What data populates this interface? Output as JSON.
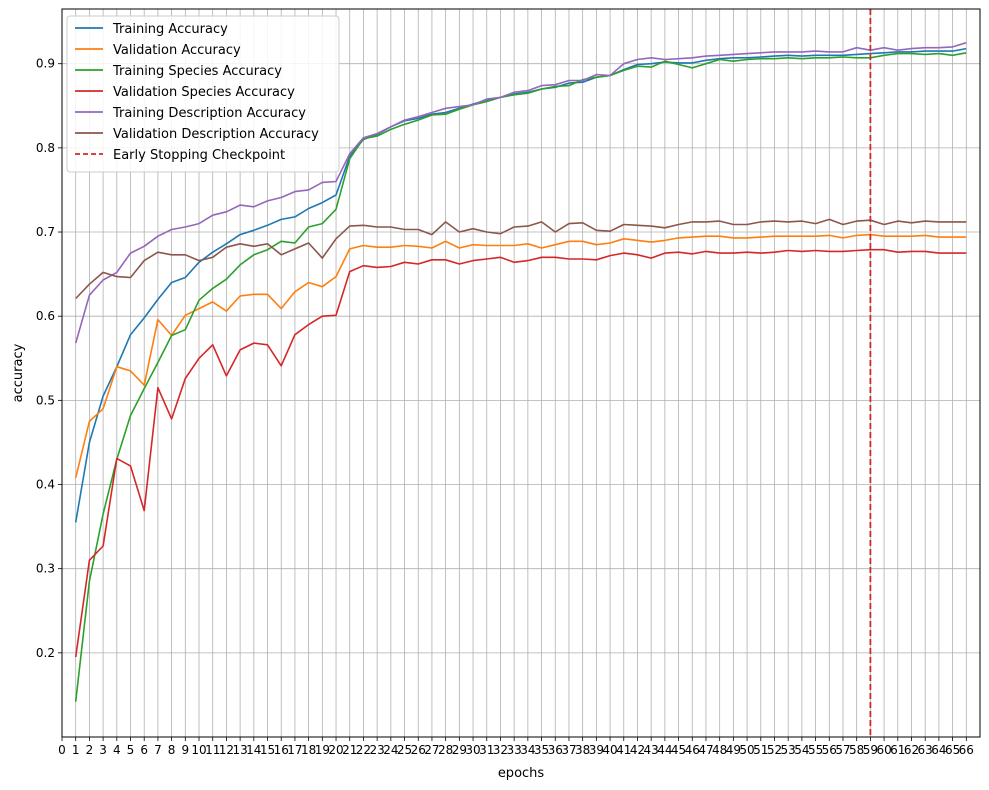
{
  "chart_data": {
    "type": "line",
    "title": "",
    "xlabel": "epochs",
    "ylabel": "accuracy",
    "xlim": [
      0,
      67
    ],
    "ylim": [
      0.1,
      0.965
    ],
    "x_ticks": [
      0,
      1,
      2,
      3,
      4,
      5,
      6,
      7,
      8,
      9,
      10,
      11,
      12,
      13,
      14,
      15,
      16,
      17,
      18,
      19,
      20,
      21,
      22,
      23,
      24,
      25,
      26,
      27,
      28,
      29,
      30,
      31,
      32,
      33,
      34,
      35,
      36,
      37,
      38,
      39,
      40,
      41,
      42,
      43,
      44,
      45,
      46,
      47,
      48,
      49,
      50,
      51,
      52,
      53,
      54,
      55,
      56,
      57,
      58,
      59,
      60,
      61,
      62,
      63,
      64,
      65,
      66
    ],
    "y_ticks": [
      "0.2",
      "0.3",
      "0.4",
      "0.5",
      "0.6",
      "0.7",
      "0.8",
      "0.9"
    ],
    "grid": true,
    "legend_position": "top-left",
    "early_stopping_epoch": 59,
    "early_stopping_label": "Early Stopping Checkpoint",
    "early_stopping_color": "#d62728",
    "x": [
      1,
      2,
      3,
      4,
      5,
      6,
      7,
      8,
      9,
      10,
      11,
      12,
      13,
      14,
      15,
      16,
      17,
      18,
      19,
      20,
      21,
      22,
      23,
      24,
      25,
      26,
      27,
      28,
      29,
      30,
      31,
      32,
      33,
      34,
      35,
      36,
      37,
      38,
      39,
      40,
      41,
      42,
      43,
      44,
      45,
      46,
      47,
      48,
      49,
      50,
      51,
      52,
      53,
      54,
      55,
      56,
      57,
      58,
      59,
      60,
      61,
      62,
      63,
      64,
      65,
      66
    ],
    "series": [
      {
        "name": "Training Accuracy",
        "color": "#1f77b4",
        "values": [
          0.355,
          0.45,
          0.505,
          0.54,
          0.578,
          0.598,
          0.62,
          0.64,
          0.646,
          0.664,
          0.676,
          0.686,
          0.697,
          0.702,
          0.708,
          0.715,
          0.718,
          0.728,
          0.735,
          0.744,
          0.79,
          0.81,
          0.816,
          0.825,
          0.832,
          0.835,
          0.84,
          0.842,
          0.847,
          0.852,
          0.857,
          0.86,
          0.864,
          0.866,
          0.87,
          0.872,
          0.877,
          0.878,
          0.884,
          0.886,
          0.893,
          0.899,
          0.9,
          0.902,
          0.901,
          0.901,
          0.904,
          0.906,
          0.907,
          0.907,
          0.908,
          0.909,
          0.91,
          0.909,
          0.91,
          0.91,
          0.91,
          0.911,
          0.912,
          0.913,
          0.914,
          0.914,
          0.915,
          0.915,
          0.915,
          0.918
        ]
      },
      {
        "name": "Validation Accuracy",
        "color": "#ff7f0e",
        "values": [
          0.408,
          0.475,
          0.49,
          0.54,
          0.535,
          0.518,
          0.596,
          0.577,
          0.601,
          0.609,
          0.617,
          0.606,
          0.624,
          0.626,
          0.626,
          0.609,
          0.629,
          0.64,
          0.635,
          0.647,
          0.68,
          0.684,
          0.682,
          0.682,
          0.684,
          0.683,
          0.681,
          0.689,
          0.681,
          0.685,
          0.684,
          0.684,
          0.684,
          0.686,
          0.681,
          0.685,
          0.689,
          0.689,
          0.685,
          0.687,
          0.692,
          0.69,
          0.688,
          0.69,
          0.693,
          0.694,
          0.695,
          0.695,
          0.693,
          0.693,
          0.694,
          0.695,
          0.695,
          0.695,
          0.695,
          0.696,
          0.693,
          0.696,
          0.697,
          0.695,
          0.695,
          0.695,
          0.696,
          0.694,
          0.694,
          0.694
        ]
      },
      {
        "name": "Training Species Accuracy",
        "color": "#2ca02c",
        "values": [
          0.142,
          0.285,
          0.365,
          0.43,
          0.482,
          0.514,
          0.545,
          0.577,
          0.584,
          0.619,
          0.633,
          0.644,
          0.661,
          0.673,
          0.679,
          0.689,
          0.687,
          0.706,
          0.71,
          0.727,
          0.787,
          0.811,
          0.814,
          0.822,
          0.828,
          0.833,
          0.839,
          0.84,
          0.846,
          0.851,
          0.855,
          0.86,
          0.863,
          0.865,
          0.87,
          0.873,
          0.874,
          0.881,
          0.884,
          0.886,
          0.892,
          0.897,
          0.896,
          0.903,
          0.899,
          0.895,
          0.9,
          0.905,
          0.903,
          0.905,
          0.906,
          0.906,
          0.907,
          0.906,
          0.907,
          0.907,
          0.908,
          0.907,
          0.907,
          0.91,
          0.912,
          0.912,
          0.911,
          0.912,
          0.91,
          0.913
        ]
      },
      {
        "name": "Validation Species Accuracy",
        "color": "#d62728",
        "values": [
          0.195,
          0.31,
          0.327,
          0.431,
          0.422,
          0.369,
          0.515,
          0.478,
          0.526,
          0.55,
          0.566,
          0.529,
          0.56,
          0.568,
          0.566,
          0.541,
          0.578,
          0.59,
          0.6,
          0.601,
          0.653,
          0.66,
          0.658,
          0.659,
          0.664,
          0.662,
          0.667,
          0.667,
          0.662,
          0.666,
          0.668,
          0.67,
          0.664,
          0.666,
          0.67,
          0.67,
          0.668,
          0.668,
          0.667,
          0.672,
          0.675,
          0.673,
          0.669,
          0.675,
          0.676,
          0.674,
          0.677,
          0.675,
          0.675,
          0.676,
          0.675,
          0.676,
          0.678,
          0.677,
          0.678,
          0.677,
          0.677,
          0.678,
          0.679,
          0.679,
          0.676,
          0.677,
          0.677,
          0.675,
          0.675,
          0.675
        ]
      },
      {
        "name": "Training Description Accuracy",
        "color": "#9467bd",
        "values": [
          0.568,
          0.625,
          0.643,
          0.652,
          0.675,
          0.683,
          0.695,
          0.703,
          0.706,
          0.71,
          0.72,
          0.724,
          0.732,
          0.73,
          0.737,
          0.741,
          0.748,
          0.75,
          0.759,
          0.76,
          0.793,
          0.812,
          0.817,
          0.825,
          0.833,
          0.837,
          0.842,
          0.847,
          0.849,
          0.851,
          0.858,
          0.86,
          0.866,
          0.868,
          0.874,
          0.875,
          0.88,
          0.88,
          0.887,
          0.886,
          0.9,
          0.905,
          0.907,
          0.905,
          0.906,
          0.907,
          0.909,
          0.91,
          0.911,
          0.912,
          0.913,
          0.914,
          0.914,
          0.914,
          0.915,
          0.914,
          0.914,
          0.919,
          0.916,
          0.919,
          0.916,
          0.918,
          0.919,
          0.919,
          0.92,
          0.925
        ]
      },
      {
        "name": "Validation Description Accuracy",
        "color": "#8c564b",
        "values": [
          0.621,
          0.638,
          0.652,
          0.647,
          0.646,
          0.666,
          0.676,
          0.673,
          0.673,
          0.666,
          0.67,
          0.682,
          0.686,
          0.683,
          0.686,
          0.673,
          0.68,
          0.687,
          0.669,
          0.692,
          0.707,
          0.708,
          0.706,
          0.706,
          0.703,
          0.703,
          0.697,
          0.712,
          0.7,
          0.704,
          0.7,
          0.698,
          0.706,
          0.707,
          0.712,
          0.7,
          0.71,
          0.711,
          0.702,
          0.701,
          0.709,
          0.708,
          0.707,
          0.705,
          0.709,
          0.712,
          0.712,
          0.713,
          0.709,
          0.709,
          0.712,
          0.713,
          0.712,
          0.713,
          0.71,
          0.715,
          0.709,
          0.713,
          0.714,
          0.709,
          0.713,
          0.711,
          0.713,
          0.712,
          0.712,
          0.712
        ]
      }
    ]
  }
}
